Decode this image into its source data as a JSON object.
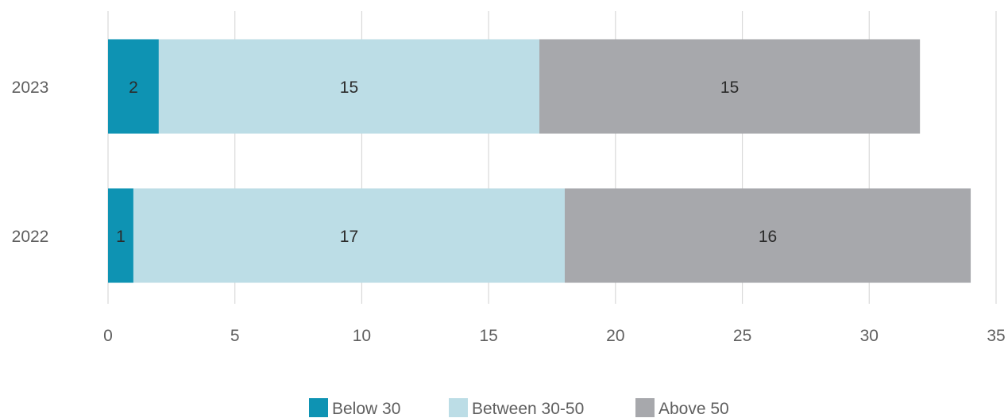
{
  "chart_data": {
    "type": "bar",
    "orientation": "horizontal",
    "stacked": true,
    "title": "",
    "xlabel": "",
    "ylabel": "",
    "categories": [
      "2023",
      "2022"
    ],
    "series": [
      {
        "name": "Below 30",
        "values": [
          2,
          1
        ],
        "color": "#0e93b3"
      },
      {
        "name": "Between 30-50",
        "values": [
          15,
          17
        ],
        "color": "#bcdde6"
      },
      {
        "name": "Above 50",
        "values": [
          15,
          16
        ],
        "color": "#a7a8ac"
      }
    ],
    "xlim": [
      0,
      35
    ],
    "xticks": [
      "0",
      "5",
      "10",
      "15",
      "20",
      "25",
      "30",
      "35"
    ],
    "grid": "vertical",
    "legend": "bottom-center"
  }
}
